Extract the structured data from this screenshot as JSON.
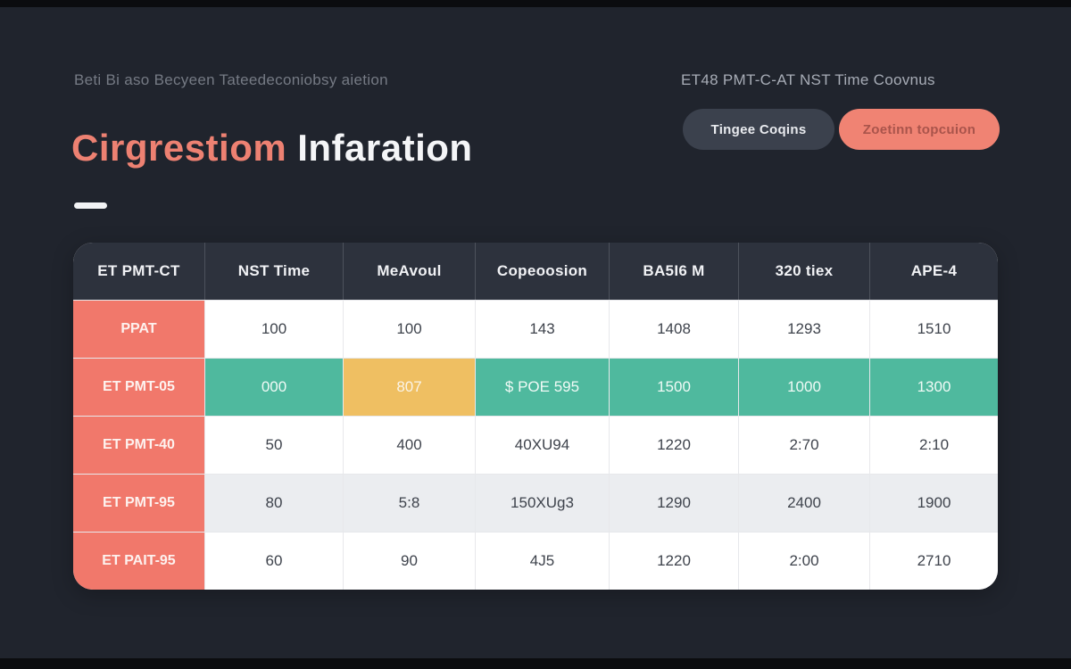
{
  "palette": {
    "background": "#20242d",
    "accent_salmon": "#f1786b",
    "accent_teal": "#4fb99e",
    "accent_orange": "#efbf62",
    "header_dark": "#2d323d",
    "zebra_gray": "#ebedf0",
    "title_accent": "#ed8172"
  },
  "header": {
    "subtitle": "Beti Bi aso Becyeen Tateedeconiobsy aietion",
    "title_accent": "Cirgrestiom",
    "title_rest": "Infaration",
    "caption": "ET48 PMT-C-AT NST Time Coovnus",
    "buttons": [
      {
        "label": "Tingee Coqins"
      },
      {
        "label": "Zoetinn topcuion"
      }
    ]
  },
  "table": {
    "columns": [
      "ET PMT-CT",
      "NST Time",
      "MeAvoul",
      "Copeoosion",
      "BA5I6 M",
      "320 tiex",
      "APE-4"
    ],
    "rows": [
      {
        "cells": [
          "PPAT",
          "100",
          "100",
          "143",
          "1408",
          "1293",
          "1510"
        ]
      },
      {
        "cells": [
          "ET PMT-05",
          "000",
          "807",
          "$ POE 595",
          "1500",
          "1000",
          "1300"
        ]
      },
      {
        "cells": [
          "ET PMT-40",
          "50",
          "400",
          "40XU94",
          "1220",
          "2:70",
          "2:10"
        ]
      },
      {
        "cells": [
          "ET PMT-95",
          "80",
          "5:8",
          "150XUg3",
          "1290",
          "2400",
          "1900"
        ]
      },
      {
        "cells": [
          "ET PAIT-95",
          "60",
          "90",
          "4J5",
          "1220",
          "2:00",
          "2710"
        ]
      }
    ]
  }
}
